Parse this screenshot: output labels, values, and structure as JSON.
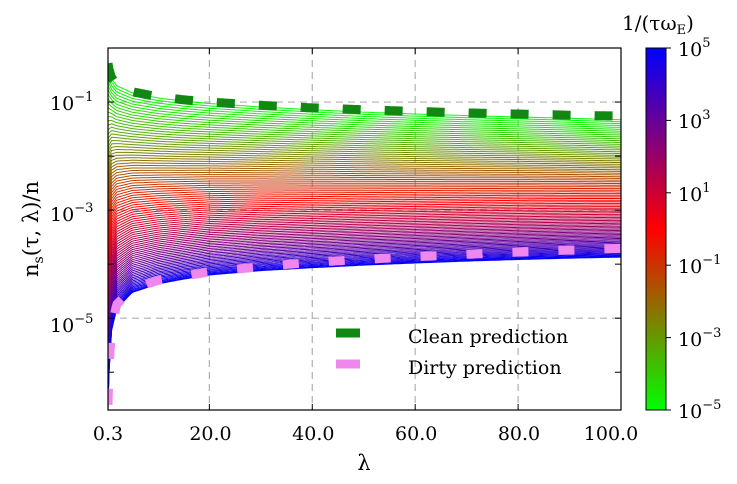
{
  "chart_data": {
    "type": "line",
    "xlabel": "λ",
    "ylabel_parts": {
      "n": "n",
      "sub": "s",
      "args": "(τ, λ)/n"
    },
    "x_ticks": [
      "0.3",
      "20.0",
      "40.0",
      "60.0",
      "80.0",
      "100.0"
    ],
    "x_tick_values": [
      0.3,
      20,
      40,
      60,
      80,
      100
    ],
    "xlim": [
      0.3,
      100
    ],
    "y_scale": "log",
    "ylim": [
      2e-07,
      1
    ],
    "y_ticks": [
      {
        "base": "10",
        "exp": "−1",
        "value": 0.1
      },
      {
        "base": "10",
        "exp": "−3",
        "value": 0.001
      },
      {
        "base": "10",
        "exp": "−5",
        "value": 1e-05
      }
    ],
    "grid": true,
    "legend_position": "lower-right",
    "series": [
      {
        "name": "Clean prediction",
        "color": "#118811",
        "style": "dashed",
        "x": [
          0.3,
          0.5,
          1,
          2,
          5,
          10,
          15,
          20,
          30,
          40,
          50,
          60,
          70,
          80,
          90,
          100
        ],
        "y": [
          0.52,
          0.4,
          0.28,
          0.21,
          0.155,
          0.125,
          0.11,
          0.1,
          0.087,
          0.078,
          0.072,
          0.067,
          0.063,
          0.06,
          0.057,
          0.055
        ]
      },
      {
        "name": "Dirty prediction",
        "color": "#ee88ee",
        "style": "dashed",
        "x": [
          0.3,
          0.5,
          1,
          2,
          5,
          10,
          15,
          20,
          30,
          40,
          50,
          60,
          70,
          80,
          90,
          100
        ],
        "y": [
          2.5e-07,
          1.2e-06,
          7e-06,
          1.8e-05,
          3.5e-05,
          5e-05,
          6e-05,
          7.2e-05,
          9e-05,
          0.000108,
          0.000123,
          0.000137,
          0.000152,
          0.000167,
          0.000182,
          0.000196
        ]
      }
    ],
    "family": {
      "count": 90,
      "parameter_range": [
        1e-05,
        100000.0
      ],
      "bottom_curve": {
        "x": [
          0.3,
          0.5,
          1,
          2,
          5,
          10,
          15,
          20,
          30,
          40,
          50,
          60,
          70,
          80,
          90,
          100
        ],
        "y": [
          2e-07,
          1e-06,
          6e-06,
          1.5e-05,
          3e-05,
          4.3e-05,
          5.3e-05,
          6.3e-05,
          7.6e-05,
          8.6e-05,
          9.6e-05,
          0.000105,
          0.000114,
          0.000122,
          0.000129,
          0.000135
        ]
      },
      "saturation_curve": {
        "x": [
          0.3,
          0.5,
          1,
          2,
          5,
          10,
          15,
          20,
          30,
          40,
          50,
          60,
          70,
          80,
          90,
          100
        ],
        "y": [
          0.5,
          0.38,
          0.27,
          0.2,
          0.148,
          0.119,
          0.104,
          0.094,
          0.081,
          0.072,
          0.065,
          0.06,
          0.056,
          0.053,
          0.05,
          0.047
        ]
      }
    },
    "colorbar": {
      "label_parts": {
        "prefix": "1/(τω",
        "sub": "E",
        "suffix": ")"
      },
      "ticks": [
        {
          "base": "10",
          "exp": "5"
        },
        {
          "base": "10",
          "exp": "3"
        },
        {
          "base": "10",
          "exp": "1"
        },
        {
          "base": "10",
          "exp": "−1"
        },
        {
          "base": "10",
          "exp": "−3"
        },
        {
          "base": "10",
          "exp": "−5"
        }
      ],
      "colors_low_to_high": [
        "#00ff00",
        "#ff0000",
        "#0000ff"
      ]
    }
  }
}
